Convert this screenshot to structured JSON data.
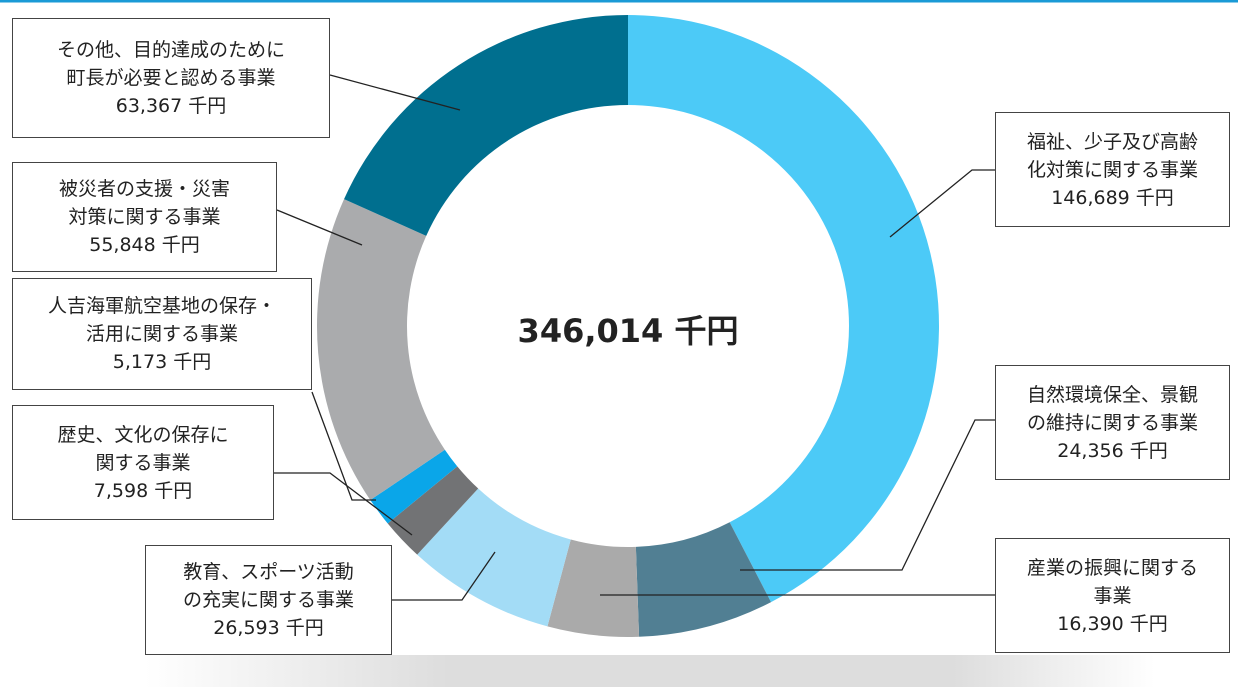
{
  "chart_data": {
    "type": "donut",
    "center_label": "346,014 千円",
    "categories": [
      "福祉、少子及び高齢\n化対策に関する事業",
      "自然環境保全、景観\nの維持に関する事業",
      "産業の振興に関する\n事業",
      "教育、スポーツ活動\nの充実に関する事業",
      "歴史、文化の保存に\n関する事業",
      "人吉海軍航空基地の保存・\n活用に関する事業",
      "被災者の支援・災害\n対策に関する事業",
      "その他、目的達成のために\n町長が必要と認める事業"
    ],
    "values": [
      146689,
      24356,
      16390,
      26593,
      7598,
      5173,
      55848,
      63367
    ],
    "value_labels": [
      "146,689 千円",
      "24,356 千円",
      "16,390 千円",
      "26,593 千円",
      "7,598 千円",
      "5,173 千円",
      "55,848 千円",
      "63,367 千円"
    ],
    "colors": [
      "#4ccaf7",
      "#517f93",
      "#aaaaaa",
      "#a3dcf6",
      "#727375",
      "#0aa6e9",
      "#aaabad",
      "#006f8f"
    ]
  }
}
